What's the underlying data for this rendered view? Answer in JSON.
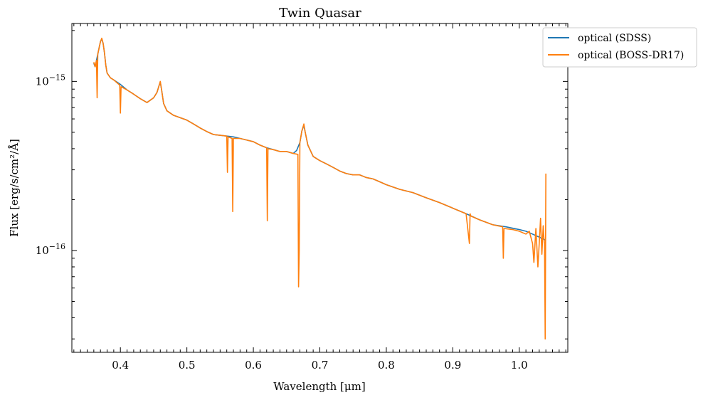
{
  "chart_data": {
    "type": "line",
    "title": "Twin Quasar",
    "xlabel": "Wavelength [μm]",
    "ylabel": "Flux [erg/s/cm²/Å]",
    "xlim": [
      0.327,
      1.073
    ],
    "ylim": [
      2.5e-17,
      2.2e-15
    ],
    "yscale": "log",
    "x_ticks": [
      {
        "value": 0.4,
        "label": "0.4"
      },
      {
        "value": 0.5,
        "label": "0.5"
      },
      {
        "value": 0.6,
        "label": "0.6"
      },
      {
        "value": 0.7,
        "label": "0.7"
      },
      {
        "value": 0.8,
        "label": "0.8"
      },
      {
        "value": 0.9,
        "label": "0.9"
      },
      {
        "value": 1.0,
        "label": "1.0"
      }
    ],
    "y_ticks": [
      {
        "value": 1e-15,
        "base": "10",
        "exp": "−15"
      },
      {
        "value": 1e-16,
        "base": "10",
        "exp": "−16"
      }
    ],
    "grid": false,
    "legend_position": "upper-right-outside",
    "series": [
      {
        "name": "optical (SDSS)",
        "color": "#1f77b4",
        "x": [
          0.36,
          0.362,
          0.364,
          0.366,
          0.368,
          0.37,
          0.372,
          0.374,
          0.376,
          0.378,
          0.38,
          0.385,
          0.39,
          0.4,
          0.41,
          0.42,
          0.43,
          0.44,
          0.45,
          0.455,
          0.458,
          0.46,
          0.462,
          0.465,
          0.47,
          0.48,
          0.49,
          0.5,
          0.51,
          0.52,
          0.53,
          0.54,
          0.55,
          0.56,
          0.57,
          0.58,
          0.59,
          0.6,
          0.61,
          0.62,
          0.63,
          0.64,
          0.65,
          0.66,
          0.665,
          0.67,
          0.673,
          0.676,
          0.678,
          0.682,
          0.69,
          0.7,
          0.71,
          0.72,
          0.73,
          0.74,
          0.75,
          0.76,
          0.77,
          0.78,
          0.79,
          0.8,
          0.82,
          0.84,
          0.86,
          0.88,
          0.9,
          0.92,
          0.94,
          0.96,
          0.98,
          1.0,
          1.01,
          1.02,
          1.03,
          1.04
        ],
        "y": [
          1.28e-15,
          1.22e-15,
          1.33e-15,
          1.45e-15,
          1.58e-15,
          1.72e-15,
          1.78e-15,
          1.68e-15,
          1.48e-15,
          1.25e-15,
          1.12e-15,
          1.05e-15,
          1.02e-15,
          9.6e-16,
          8.9e-16,
          8.4e-16,
          7.9e-16,
          7.5e-16,
          8e-16,
          8.6e-16,
          9.4e-16,
          9.9e-16,
          8.9e-16,
          7.4e-16,
          6.7e-16,
          6.3e-16,
          6.1e-16,
          5.9e-16,
          5.6e-16,
          5.3e-16,
          5.05e-16,
          4.85e-16,
          4.8e-16,
          4.75e-16,
          4.7e-16,
          4.6e-16,
          4.5e-16,
          4.4e-16,
          4.2e-16,
          4.05e-16,
          3.95e-16,
          3.85e-16,
          3.85e-16,
          3.75e-16,
          3.9e-16,
          4.35e-16,
          5.1e-16,
          5.5e-16,
          5e-16,
          4.2e-16,
          3.6e-16,
          3.4e-16,
          3.25e-16,
          3.1e-16,
          2.95e-16,
          2.85e-16,
          2.8e-16,
          2.8e-16,
          2.7e-16,
          2.65e-16,
          2.55e-16,
          2.45e-16,
          2.3e-16,
          2.2e-16,
          2.05e-16,
          1.92e-16,
          1.78e-16,
          1.65e-16,
          1.52e-16,
          1.42e-16,
          1.38e-16,
          1.33e-16,
          1.3e-16,
          1.25e-16,
          1.2e-16,
          1.15e-16
        ]
      },
      {
        "name": "optical (BOSS-DR17)",
        "color": "#ff7f0e",
        "x": [
          0.36,
          0.362,
          0.364,
          0.365,
          0.366,
          0.368,
          0.37,
          0.372,
          0.374,
          0.376,
          0.378,
          0.38,
          0.385,
          0.39,
          0.399,
          0.4,
          0.401,
          0.41,
          0.42,
          0.43,
          0.44,
          0.45,
          0.455,
          0.458,
          0.46,
          0.462,
          0.465,
          0.47,
          0.48,
          0.49,
          0.5,
          0.51,
          0.52,
          0.53,
          0.54,
          0.55,
          0.56,
          0.561,
          0.562,
          0.568,
          0.569,
          0.57,
          0.58,
          0.59,
          0.6,
          0.61,
          0.62,
          0.621,
          0.622,
          0.63,
          0.64,
          0.65,
          0.66,
          0.667,
          0.668,
          0.669,
          0.67,
          0.673,
          0.676,
          0.678,
          0.682,
          0.69,
          0.7,
          0.71,
          0.72,
          0.73,
          0.74,
          0.75,
          0.76,
          0.77,
          0.78,
          0.79,
          0.8,
          0.82,
          0.84,
          0.86,
          0.88,
          0.9,
          0.92,
          0.925,
          0.926,
          0.927,
          0.94,
          0.96,
          0.975,
          0.976,
          0.977,
          0.99,
          1.0,
          1.01,
          1.015,
          1.02,
          1.022,
          1.025,
          1.028,
          1.03,
          1.032,
          1.034,
          1.036,
          1.037,
          1.038,
          1.039,
          1.04
        ],
        "y": [
          1.3e-15,
          1.22e-15,
          1.33e-15,
          8e-16,
          1.45e-15,
          1.58e-15,
          1.72e-15,
          1.8e-15,
          1.68e-15,
          1.48e-15,
          1.25e-15,
          1.12e-15,
          1.05e-15,
          1.02e-15,
          9.5e-16,
          6.5e-16,
          9.3e-16,
          8.9e-16,
          8.4e-16,
          7.9e-16,
          7.5e-16,
          8e-16,
          8.6e-16,
          9.4e-16,
          1e-15,
          8.9e-16,
          7.4e-16,
          6.7e-16,
          6.3e-16,
          6.1e-16,
          5.9e-16,
          5.6e-16,
          5.3e-16,
          5.05e-16,
          4.85e-16,
          4.8e-16,
          4.75e-16,
          2.9e-16,
          4.7e-16,
          4.6e-16,
          1.7e-16,
          4.6e-16,
          4.6e-16,
          4.5e-16,
          4.4e-16,
          4.2e-16,
          4.05e-16,
          1.5e-16,
          4e-16,
          3.95e-16,
          3.85e-16,
          3.85e-16,
          3.75e-16,
          3.7e-16,
          6.1e-17,
          1e-16,
          4.35e-16,
          5.1e-16,
          5.6e-16,
          5e-16,
          4.2e-16,
          3.6e-16,
          3.4e-16,
          3.25e-16,
          3.1e-16,
          2.95e-16,
          2.85e-16,
          2.8e-16,
          2.8e-16,
          2.7e-16,
          2.65e-16,
          2.55e-16,
          2.45e-16,
          2.3e-16,
          2.2e-16,
          2.05e-16,
          1.92e-16,
          1.78e-16,
          1.65e-16,
          1.1e-16,
          1.65e-16,
          1.6e-16,
          1.52e-16,
          1.42e-16,
          1.38e-16,
          9e-17,
          1.35e-16,
          1.33e-16,
          1.3e-16,
          1.25e-16,
          1.3e-16,
          1.1e-16,
          8.5e-17,
          1.35e-16,
          8e-17,
          1.1e-16,
          1.55e-16,
          9.5e-17,
          1.4e-16,
          1.2e-16,
          1.1e-16,
          3e-17,
          2.85e-16
        ]
      }
    ]
  }
}
